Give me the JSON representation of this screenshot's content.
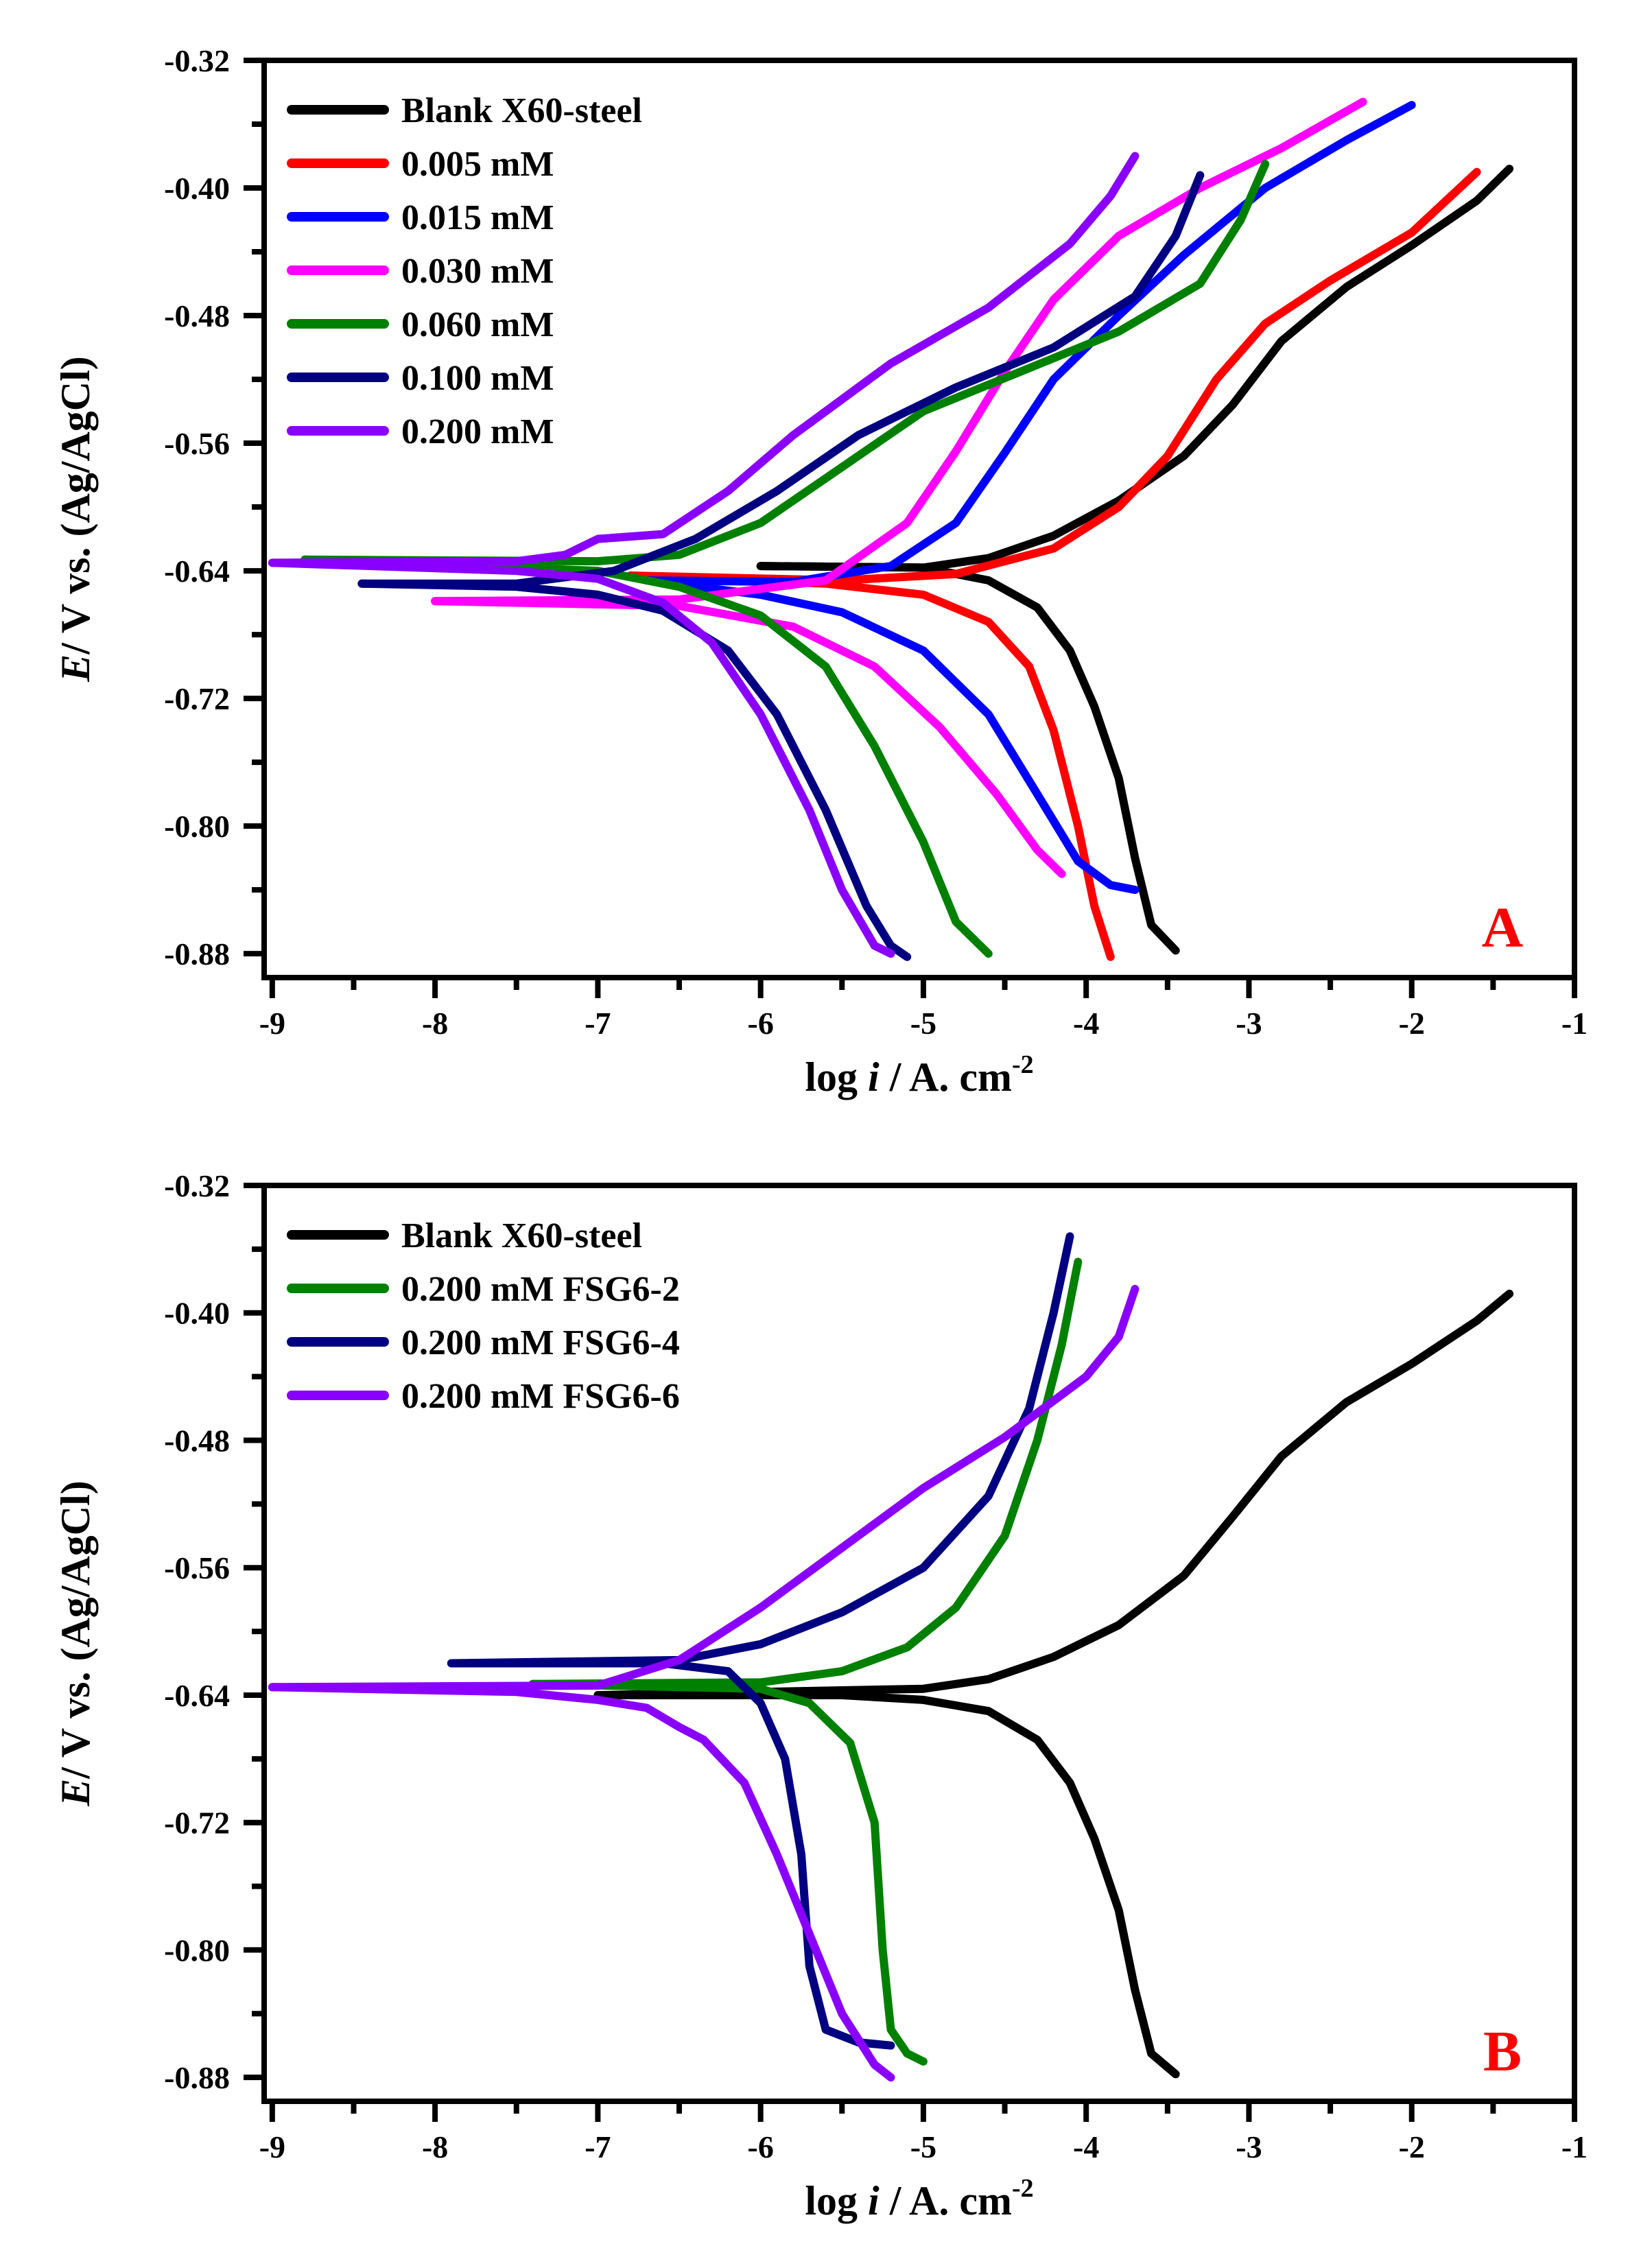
{
  "chart_data": [
    {
      "type": "line",
      "panel_label": "A",
      "panel_label_color": "#ff0000",
      "xlabel_prefix": "log ",
      "xlabel_var": "i",
      "xlabel_suffix": " /  A. cm",
      "xlabel_sup": "-2",
      "ylabel_var": "E",
      "ylabel_rest": "/ V vs. (Ag/AgCl)",
      "xlim": [
        -9.05,
        -1
      ],
      "ylim": [
        -0.895,
        -0.32
      ],
      "xticks": [
        -9,
        -8,
        -7,
        -6,
        -5,
        -4,
        -3,
        -2,
        -1
      ],
      "xtick_labels": [
        "-9",
        "-8",
        "-7",
        "-6",
        "-5",
        "-4",
        "-3",
        "-2",
        "-1"
      ],
      "yticks": [
        -0.32,
        -0.4,
        -0.48,
        -0.56,
        -0.64,
        -0.72,
        -0.8,
        -0.88
      ],
      "ytick_labels": [
        "-0.32",
        "-0.40",
        "-0.48",
        "-0.56",
        "-0.64",
        "-0.72",
        "-0.80",
        "-0.88"
      ],
      "legend_position": "top-left",
      "series": [
        {
          "name": "Blank X60-steel",
          "color": "#000000",
          "anodic": [
            [
              -6.0,
              -0.637
            ],
            [
              -5.0,
              -0.638
            ],
            [
              -4.6,
              -0.632
            ],
            [
              -4.2,
              -0.618
            ],
            [
              -3.8,
              -0.596
            ],
            [
              -3.4,
              -0.568
            ],
            [
              -3.1,
              -0.536
            ],
            [
              -2.8,
              -0.496
            ],
            [
              -2.4,
              -0.462
            ],
            [
              -2.0,
              -0.436
            ],
            [
              -1.6,
              -0.408
            ],
            [
              -1.4,
              -0.388
            ]
          ],
          "cathodic": [
            [
              -6.0,
              -0.637
            ],
            [
              -5.0,
              -0.638
            ],
            [
              -4.6,
              -0.646
            ],
            [
              -4.3,
              -0.663
            ],
            [
              -4.1,
              -0.69
            ],
            [
              -3.95,
              -0.725
            ],
            [
              -3.8,
              -0.77
            ],
            [
              -3.7,
              -0.82
            ],
            [
              -3.6,
              -0.862
            ],
            [
              -3.45,
              -0.878
            ]
          ]
        },
        {
          "name": "0.005 mM",
          "color": "#ff0000",
          "anodic": [
            [
              -6.8,
              -0.643
            ],
            [
              -5.5,
              -0.646
            ],
            [
              -4.8,
              -0.642
            ],
            [
              -4.2,
              -0.626
            ],
            [
              -3.8,
              -0.6
            ],
            [
              -3.5,
              -0.568
            ],
            [
              -3.2,
              -0.52
            ],
            [
              -2.9,
              -0.485
            ],
            [
              -2.5,
              -0.458
            ],
            [
              -2.0,
              -0.428
            ],
            [
              -1.6,
              -0.39
            ]
          ],
          "cathodic": [
            [
              -6.8,
              -0.643
            ],
            [
              -5.6,
              -0.648
            ],
            [
              -5.0,
              -0.655
            ],
            [
              -4.6,
              -0.672
            ],
            [
              -4.35,
              -0.7
            ],
            [
              -4.2,
              -0.74
            ],
            [
              -4.05,
              -0.8
            ],
            [
              -3.95,
              -0.85
            ],
            [
              -3.85,
              -0.882
            ]
          ]
        },
        {
          "name": "0.015 mM",
          "color": "#0000ff",
          "anodic": [
            [
              -6.7,
              -0.646
            ],
            [
              -5.8,
              -0.647
            ],
            [
              -5.2,
              -0.637
            ],
            [
              -4.8,
              -0.61
            ],
            [
              -4.5,
              -0.566
            ],
            [
              -4.2,
              -0.52
            ],
            [
              -3.8,
              -0.48
            ],
            [
              -3.4,
              -0.442
            ],
            [
              -2.9,
              -0.4
            ],
            [
              -2.4,
              -0.37
            ],
            [
              -2.0,
              -0.348
            ]
          ],
          "cathodic": [
            [
              -6.7,
              -0.646
            ],
            [
              -6.0,
              -0.655
            ],
            [
              -5.5,
              -0.666
            ],
            [
              -5.0,
              -0.69
            ],
            [
              -4.6,
              -0.73
            ],
            [
              -4.3,
              -0.78
            ],
            [
              -4.05,
              -0.822
            ],
            [
              -3.85,
              -0.837
            ],
            [
              -3.7,
              -0.84
            ]
          ]
        },
        {
          "name": "0.030 mM",
          "color": "#ff00ff",
          "anodic": [
            [
              -8.0,
              -0.659
            ],
            [
              -6.5,
              -0.658
            ],
            [
              -5.6,
              -0.646
            ],
            [
              -5.1,
              -0.61
            ],
            [
              -4.8,
              -0.565
            ],
            [
              -4.5,
              -0.515
            ],
            [
              -4.2,
              -0.47
            ],
            [
              -3.8,
              -0.43
            ],
            [
              -3.3,
              -0.4
            ],
            [
              -2.8,
              -0.375
            ],
            [
              -2.3,
              -0.346
            ]
          ],
          "cathodic": [
            [
              -8.0,
              -0.659
            ],
            [
              -6.5,
              -0.662
            ],
            [
              -5.8,
              -0.675
            ],
            [
              -5.3,
              -0.7
            ],
            [
              -4.9,
              -0.738
            ],
            [
              -4.55,
              -0.78
            ],
            [
              -4.3,
              -0.815
            ],
            [
              -4.15,
              -0.83
            ]
          ]
        },
        {
          "name": "0.060 mM",
          "color": "#008000",
          "anodic": [
            [
              -8.8,
              -0.633
            ],
            [
              -7.0,
              -0.634
            ],
            [
              -6.5,
              -0.63
            ],
            [
              -6.0,
              -0.61
            ],
            [
              -5.5,
              -0.575
            ],
            [
              -5.0,
              -0.54
            ],
            [
              -4.4,
              -0.515
            ],
            [
              -3.8,
              -0.49
            ],
            [
              -3.3,
              -0.46
            ],
            [
              -3.05,
              -0.42
            ],
            [
              -2.9,
              -0.385
            ]
          ],
          "cathodic": [
            [
              -8.8,
              -0.633
            ],
            [
              -7.0,
              -0.64
            ],
            [
              -6.5,
              -0.65
            ],
            [
              -6.0,
              -0.668
            ],
            [
              -5.6,
              -0.7
            ],
            [
              -5.3,
              -0.75
            ],
            [
              -5.0,
              -0.81
            ],
            [
              -4.8,
              -0.86
            ],
            [
              -4.6,
              -0.88
            ]
          ]
        },
        {
          "name": "0.100 mM",
          "color": "#000080",
          "anodic": [
            [
              -8.45,
              -0.648
            ],
            [
              -7.5,
              -0.648
            ],
            [
              -6.9,
              -0.64
            ],
            [
              -6.4,
              -0.62
            ],
            [
              -5.9,
              -0.59
            ],
            [
              -5.4,
              -0.555
            ],
            [
              -4.8,
              -0.525
            ],
            [
              -4.2,
              -0.5
            ],
            [
              -3.7,
              -0.468
            ],
            [
              -3.45,
              -0.43
            ],
            [
              -3.3,
              -0.392
            ]
          ],
          "cathodic": [
            [
              -8.45,
              -0.648
            ],
            [
              -7.5,
              -0.65
            ],
            [
              -7.0,
              -0.655
            ],
            [
              -6.6,
              -0.665
            ],
            [
              -6.2,
              -0.69
            ],
            [
              -5.9,
              -0.73
            ],
            [
              -5.6,
              -0.79
            ],
            [
              -5.35,
              -0.85
            ],
            [
              -5.2,
              -0.875
            ],
            [
              -5.1,
              -0.882
            ]
          ]
        },
        {
          "name": "0.200 mM",
          "color": "#8a00ff",
          "anodic": [
            [
              -9.0,
              -0.635
            ],
            [
              -7.5,
              -0.634
            ],
            [
              -7.2,
              -0.63
            ],
            [
              -7.0,
              -0.62
            ],
            [
              -6.6,
              -0.617
            ],
            [
              -6.2,
              -0.59
            ],
            [
              -5.8,
              -0.555
            ],
            [
              -5.2,
              -0.51
            ],
            [
              -4.6,
              -0.475
            ],
            [
              -4.1,
              -0.435
            ],
            [
              -3.85,
              -0.405
            ],
            [
              -3.7,
              -0.38
            ]
          ],
          "cathodic": [
            [
              -9.0,
              -0.635
            ],
            [
              -7.5,
              -0.64
            ],
            [
              -7.0,
              -0.645
            ],
            [
              -6.6,
              -0.66
            ],
            [
              -6.3,
              -0.685
            ],
            [
              -6.0,
              -0.73
            ],
            [
              -5.7,
              -0.79
            ],
            [
              -5.5,
              -0.84
            ],
            [
              -5.3,
              -0.875
            ],
            [
              -5.2,
              -0.88
            ]
          ]
        }
      ]
    },
    {
      "type": "line",
      "panel_label": "B",
      "panel_label_color": "#ff0000",
      "xlabel_prefix": "log ",
      "xlabel_var": "i",
      "xlabel_suffix": " /  A. cm",
      "xlabel_sup": "-2",
      "ylabel_var": "E",
      "ylabel_rest": "/ V vs. (Ag/AgCl)",
      "xlim": [
        -9.05,
        -1
      ],
      "ylim": [
        -0.895,
        -0.32
      ],
      "xticks": [
        -9,
        -8,
        -7,
        -6,
        -5,
        -4,
        -3,
        -2,
        -1
      ],
      "xtick_labels": [
        "-9",
        "-8",
        "-7",
        "-6",
        "-5",
        "-4",
        "-3",
        "-2",
        "-1"
      ],
      "yticks": [
        -0.32,
        -0.4,
        -0.48,
        -0.56,
        -0.64,
        -0.72,
        -0.8,
        -0.88
      ],
      "ytick_labels": [
        "-0.32",
        "-0.40",
        "-0.48",
        "-0.56",
        "-0.64",
        "-0.72",
        "-0.80",
        "-0.88"
      ],
      "legend_position": "top-left",
      "series": [
        {
          "name": "Blank X60-steel",
          "color": "#000000",
          "anodic": [
            [
              -7.0,
              -0.64
            ],
            [
              -5.5,
              -0.637
            ],
            [
              -5.0,
              -0.636
            ],
            [
              -4.6,
              -0.63
            ],
            [
              -4.2,
              -0.616
            ],
            [
              -3.8,
              -0.596
            ],
            [
              -3.4,
              -0.565
            ],
            [
              -3.1,
              -0.528
            ],
            [
              -2.8,
              -0.49
            ],
            [
              -2.4,
              -0.456
            ],
            [
              -2.0,
              -0.432
            ],
            [
              -1.6,
              -0.405
            ],
            [
              -1.4,
              -0.388
            ]
          ],
          "cathodic": [
            [
              -7.0,
              -0.64
            ],
            [
              -5.5,
              -0.64
            ],
            [
              -5.0,
              -0.643
            ],
            [
              -4.6,
              -0.65
            ],
            [
              -4.3,
              -0.668
            ],
            [
              -4.1,
              -0.695
            ],
            [
              -3.95,
              -0.73
            ],
            [
              -3.8,
              -0.775
            ],
            [
              -3.7,
              -0.825
            ],
            [
              -3.6,
              -0.865
            ],
            [
              -3.45,
              -0.878
            ]
          ]
        },
        {
          "name": "0.200 mM FSG6-2",
          "color": "#008000",
          "anodic": [
            [
              -7.4,
              -0.633
            ],
            [
              -6.0,
              -0.632
            ],
            [
              -5.5,
              -0.625
            ],
            [
              -5.1,
              -0.61
            ],
            [
              -4.8,
              -0.585
            ],
            [
              -4.5,
              -0.54
            ],
            [
              -4.3,
              -0.48
            ],
            [
              -4.15,
              -0.42
            ],
            [
              -4.05,
              -0.368
            ]
          ],
          "cathodic": [
            [
              -7.4,
              -0.633
            ],
            [
              -6.0,
              -0.636
            ],
            [
              -5.7,
              -0.645
            ],
            [
              -5.45,
              -0.67
            ],
            [
              -5.3,
              -0.72
            ],
            [
              -5.25,
              -0.8
            ],
            [
              -5.2,
              -0.85
            ],
            [
              -5.1,
              -0.865
            ],
            [
              -5.0,
              -0.87
            ]
          ]
        },
        {
          "name": "0.200 mM FSG6-4",
          "color": "#000080",
          "anodic": [
            [
              -7.9,
              -0.62
            ],
            [
              -6.5,
              -0.618
            ],
            [
              -6.0,
              -0.608
            ],
            [
              -5.5,
              -0.588
            ],
            [
              -5.0,
              -0.56
            ],
            [
              -4.6,
              -0.515
            ],
            [
              -4.35,
              -0.46
            ],
            [
              -4.2,
              -0.4
            ],
            [
              -4.1,
              -0.352
            ]
          ],
          "cathodic": [
            [
              -7.9,
              -0.62
            ],
            [
              -6.6,
              -0.62
            ],
            [
              -6.2,
              -0.625
            ],
            [
              -6.0,
              -0.645
            ],
            [
              -5.85,
              -0.68
            ],
            [
              -5.75,
              -0.74
            ],
            [
              -5.7,
              -0.81
            ],
            [
              -5.6,
              -0.85
            ],
            [
              -5.4,
              -0.858
            ],
            [
              -5.2,
              -0.86
            ]
          ]
        },
        {
          "name": "0.200 mM FSG6-6",
          "color": "#8a00ff",
          "anodic": [
            [
              -9.0,
              -0.635
            ],
            [
              -7.0,
              -0.634
            ],
            [
              -6.5,
              -0.618
            ],
            [
              -6.0,
              -0.585
            ],
            [
              -5.6,
              -0.555
            ],
            [
              -5.0,
              -0.51
            ],
            [
              -4.5,
              -0.478
            ],
            [
              -4.0,
              -0.44
            ],
            [
              -3.8,
              -0.415
            ],
            [
              -3.7,
              -0.385
            ]
          ],
          "cathodic": [
            [
              -9.0,
              -0.635
            ],
            [
              -7.5,
              -0.638
            ],
            [
              -7.0,
              -0.643
            ],
            [
              -6.7,
              -0.648
            ],
            [
              -6.5,
              -0.66
            ],
            [
              -6.35,
              -0.668
            ],
            [
              -6.1,
              -0.695
            ],
            [
              -5.9,
              -0.74
            ],
            [
              -5.7,
              -0.79
            ],
            [
              -5.5,
              -0.84
            ],
            [
              -5.3,
              -0.872
            ],
            [
              -5.2,
              -0.88
            ]
          ]
        }
      ]
    }
  ]
}
